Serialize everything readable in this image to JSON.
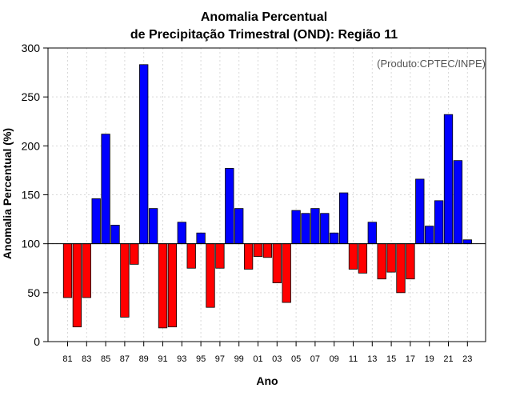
{
  "chart_data": {
    "type": "bar",
    "title_line1": "Anomalia Percentual",
    "title_line2": "de Precipitação Trimestral (OND): Região 11",
    "xlabel": "Ano",
    "ylabel": "Anomalia Percentual (%)",
    "source_note": "(Produto:CPTEC/INPE)",
    "baseline": 100,
    "ylim": [
      0,
      300
    ],
    "yticks": [
      "0",
      "50",
      "100",
      "150",
      "200",
      "250",
      "300"
    ],
    "grid": true,
    "above_color": "#0000ff",
    "below_color": "#ff0000",
    "xtick_labels": [
      "81",
      "83",
      "85",
      "87",
      "89",
      "91",
      "93",
      "95",
      "97",
      "99",
      "01",
      "03",
      "05",
      "07",
      "09",
      "11",
      "13",
      "15",
      "17",
      "19",
      "21",
      "23"
    ],
    "categories": [
      "81",
      "82",
      "83",
      "84",
      "85",
      "86",
      "87",
      "88",
      "89",
      "90",
      "91",
      "92",
      "93",
      "94",
      "95",
      "96",
      "97",
      "98",
      "99",
      "00",
      "01",
      "02",
      "03",
      "04",
      "05",
      "06",
      "07",
      "08",
      "09",
      "10",
      "11",
      "12",
      "13",
      "14",
      "15",
      "16",
      "17",
      "18",
      "19",
      "20",
      "21",
      "22",
      "23"
    ],
    "values": [
      45,
      15,
      45,
      146,
      212,
      119,
      25,
      79,
      283,
      136,
      14,
      15,
      122,
      75,
      111,
      35,
      75,
      177,
      136,
      74,
      87,
      86,
      60,
      40,
      134,
      131,
      136,
      131,
      111,
      152,
      74,
      70,
      122,
      64,
      71,
      50,
      64,
      166,
      118,
      144,
      232,
      185,
      104
    ]
  }
}
